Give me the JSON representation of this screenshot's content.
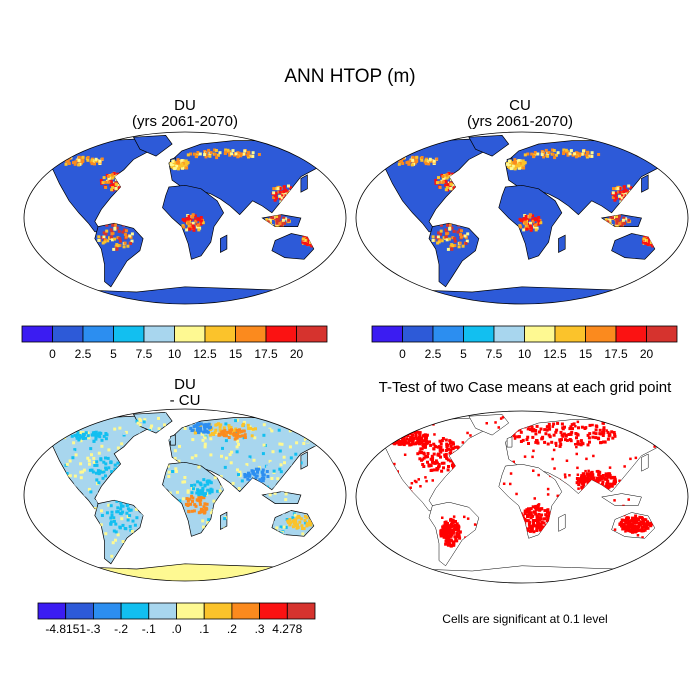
{
  "title": "ANN HTOP (m)",
  "panels": [
    {
      "id": "du",
      "title_line1": "DU",
      "title_line2": "(yrs 2061-2070)"
    },
    {
      "id": "cu",
      "title_line1": "CU",
      "title_line2": "(yrs 2061-2070)"
    },
    {
      "id": "diff",
      "title_line1": "DU",
      "title_line2": "- CU"
    },
    {
      "id": "ttest",
      "title_line1": "T-Test of two Case means at each grid point",
      "title_line2": ""
    }
  ],
  "colorbars": {
    "absolute": {
      "colors": [
        "#3b1cf2",
        "#2d5ad8",
        "#2c8ef0",
        "#12bff0",
        "#a8d6ee",
        "#fef992",
        "#fbc32b",
        "#fb8a1e",
        "#fb1212",
        "#d6332e"
      ],
      "labels": [
        "0",
        "2.5",
        "5",
        "7.5",
        "10",
        "12.5",
        "15",
        "17.5",
        "20"
      ]
    },
    "difference": {
      "colors": [
        "#3b1cf2",
        "#2d5ad8",
        "#2c8ef0",
        "#12bff0",
        "#a8d6ee",
        "#fef992",
        "#fbc32b",
        "#fb8a1e",
        "#fb1212",
        "#d6332e"
      ],
      "labels": [
        "-4.8151",
        "-.3",
        "-.2",
        "-.1",
        ".0",
        ".1",
        ".2",
        ".3",
        "4.278"
      ]
    }
  },
  "ttest_note": "Cells are significant at 0.1 level",
  "colors": {
    "ocean": "#ffffff",
    "land_base_absolute": "#2d5ad8",
    "land_base_difference": "#a8d6ee",
    "significant": "#ff0000",
    "outline": "#000000"
  }
}
